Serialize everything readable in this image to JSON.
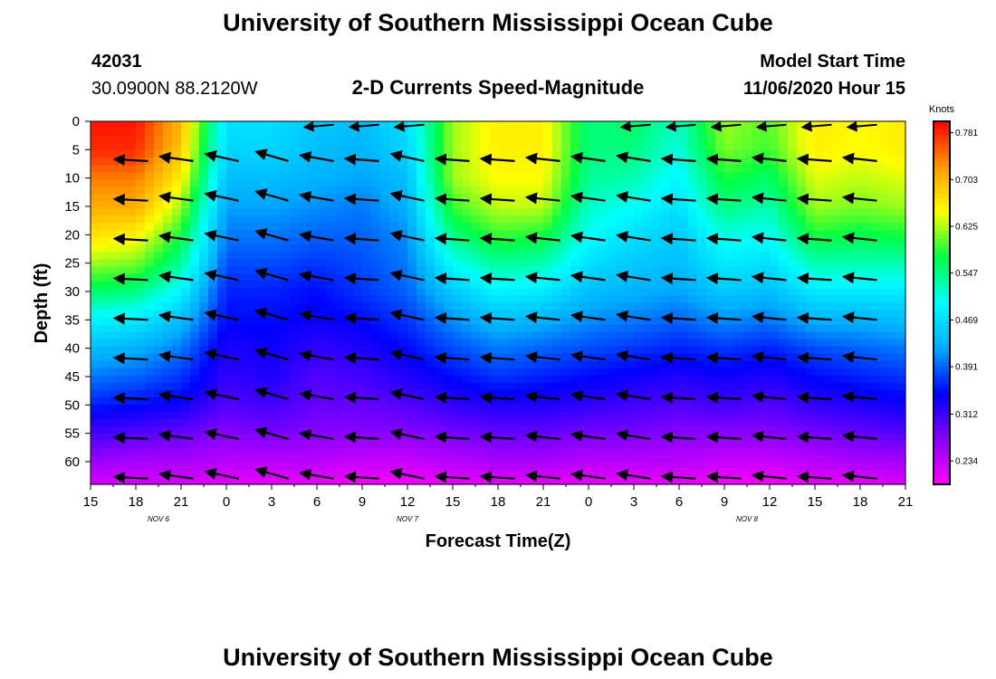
{
  "header": {
    "title": "University of Southern Mississippi Ocean Cube",
    "station_id": "42031",
    "coordinates": "30.0900N 88.2120W",
    "plot_title": "2-D Currents Speed-Magnitude",
    "model_start_label": "Model Start Time",
    "model_start_value": "11/06/2020 Hour 15"
  },
  "footer": {
    "title": "University of Southern Mississippi Ocean Cube"
  },
  "chart_data": {
    "type": "heatmap",
    "xlabel": "Forecast Time(Z)",
    "ylabel": "Depth (ft)",
    "x_ticks": [
      "15",
      "18",
      "21",
      "0",
      "3",
      "6",
      "9",
      "12",
      "15",
      "18",
      "21",
      "0",
      "3",
      "6",
      "9",
      "12",
      "15",
      "18",
      "21"
    ],
    "date_labels": [
      {
        "label": "NOV  6",
        "tick_index": 1.5
      },
      {
        "label": "NOV  7",
        "tick_index": 7
      },
      {
        "label": "NOV  8",
        "tick_index": 14.5
      }
    ],
    "y_ticks": [
      0,
      5,
      10,
      15,
      20,
      25,
      30,
      35,
      40,
      45,
      50,
      55,
      60
    ],
    "ylim": [
      0,
      64
    ],
    "colorbar": {
      "unit": "Knots",
      "ticks": [
        "0.781",
        "0.703",
        "0.625",
        "0.547",
        "0.469",
        "0.391",
        "0.312",
        "0.234"
      ],
      "range": [
        0.195,
        0.8
      ],
      "colors": [
        "#ff00ff",
        "#8800ff",
        "#0000ff",
        "#00aaff",
        "#00ffff",
        "#00ff44",
        "#ffff00",
        "#ff9900",
        "#ff0000"
      ]
    },
    "depths": [
      0,
      5,
      10,
      15,
      20,
      25,
      30,
      35,
      40,
      45,
      50,
      55,
      60,
      64
    ],
    "times": [
      0,
      1,
      2,
      3,
      4,
      5,
      6,
      7,
      8,
      9,
      10,
      11,
      12,
      13,
      14,
      15,
      16,
      17,
      18
    ],
    "speed": [
      [
        0.79,
        0.79,
        0.7,
        0.47,
        0.47,
        0.45,
        0.44,
        0.47,
        0.62,
        0.66,
        0.66,
        0.55,
        0.56,
        0.52,
        0.62,
        0.6,
        0.66,
        0.65,
        0.66
      ],
      [
        0.78,
        0.78,
        0.69,
        0.46,
        0.46,
        0.44,
        0.43,
        0.46,
        0.62,
        0.66,
        0.66,
        0.55,
        0.55,
        0.51,
        0.61,
        0.59,
        0.66,
        0.65,
        0.66
      ],
      [
        0.74,
        0.74,
        0.66,
        0.44,
        0.44,
        0.43,
        0.42,
        0.44,
        0.62,
        0.65,
        0.65,
        0.54,
        0.53,
        0.49,
        0.58,
        0.56,
        0.64,
        0.63,
        0.64
      ],
      [
        0.71,
        0.71,
        0.62,
        0.42,
        0.42,
        0.41,
        0.4,
        0.43,
        0.59,
        0.63,
        0.63,
        0.52,
        0.5,
        0.47,
        0.55,
        0.53,
        0.62,
        0.61,
        0.62
      ],
      [
        0.67,
        0.66,
        0.58,
        0.4,
        0.4,
        0.39,
        0.39,
        0.41,
        0.55,
        0.59,
        0.58,
        0.5,
        0.47,
        0.45,
        0.51,
        0.5,
        0.58,
        0.57,
        0.58
      ],
      [
        0.62,
        0.61,
        0.54,
        0.38,
        0.38,
        0.37,
        0.38,
        0.4,
        0.5,
        0.54,
        0.53,
        0.47,
        0.45,
        0.44,
        0.48,
        0.47,
        0.53,
        0.53,
        0.53
      ],
      [
        0.56,
        0.55,
        0.49,
        0.36,
        0.36,
        0.35,
        0.37,
        0.39,
        0.45,
        0.49,
        0.48,
        0.44,
        0.43,
        0.42,
        0.45,
        0.44,
        0.48,
        0.48,
        0.48
      ],
      [
        0.49,
        0.48,
        0.44,
        0.35,
        0.35,
        0.34,
        0.35,
        0.37,
        0.41,
        0.44,
        0.43,
        0.41,
        0.4,
        0.39,
        0.41,
        0.4,
        0.43,
        0.43,
        0.44
      ],
      [
        0.44,
        0.43,
        0.4,
        0.33,
        0.34,
        0.32,
        0.33,
        0.35,
        0.38,
        0.4,
        0.39,
        0.38,
        0.37,
        0.36,
        0.37,
        0.36,
        0.38,
        0.39,
        0.4
      ],
      [
        0.4,
        0.39,
        0.37,
        0.32,
        0.33,
        0.3,
        0.31,
        0.33,
        0.35,
        0.37,
        0.36,
        0.35,
        0.34,
        0.33,
        0.34,
        0.33,
        0.35,
        0.36,
        0.37
      ],
      [
        0.36,
        0.35,
        0.34,
        0.3,
        0.31,
        0.29,
        0.29,
        0.3,
        0.32,
        0.33,
        0.33,
        0.32,
        0.31,
        0.3,
        0.31,
        0.3,
        0.32,
        0.33,
        0.34
      ],
      [
        0.31,
        0.3,
        0.29,
        0.27,
        0.28,
        0.27,
        0.27,
        0.27,
        0.28,
        0.29,
        0.29,
        0.28,
        0.28,
        0.27,
        0.27,
        0.27,
        0.28,
        0.29,
        0.3
      ],
      [
        0.26,
        0.25,
        0.25,
        0.24,
        0.24,
        0.24,
        0.23,
        0.23,
        0.24,
        0.25,
        0.25,
        0.24,
        0.24,
        0.24,
        0.23,
        0.23,
        0.24,
        0.25,
        0.25
      ],
      [
        0.22,
        0.22,
        0.22,
        0.21,
        0.21,
        0.21,
        0.2,
        0.2,
        0.21,
        0.21,
        0.21,
        0.21,
        0.21,
        0.21,
        0.2,
        0.2,
        0.21,
        0.21,
        0.22
      ]
    ],
    "vectors": {
      "times": [
        1.27,
        2.27,
        3.27,
        4.37,
        5.37,
        6.37,
        7.37,
        8.37,
        9.37,
        10.37,
        11.37,
        12.37,
        13.37,
        14.37,
        15.37,
        16.37,
        17.37
      ],
      "depths": [
        7,
        14,
        21,
        28,
        35,
        42,
        49,
        56,
        63
      ],
      "angles_deg": [
        177,
        172,
        168,
        164,
        170,
        176,
        168,
        176,
        176,
        174,
        172,
        171,
        176,
        176,
        174,
        176,
        174
      ]
    }
  }
}
